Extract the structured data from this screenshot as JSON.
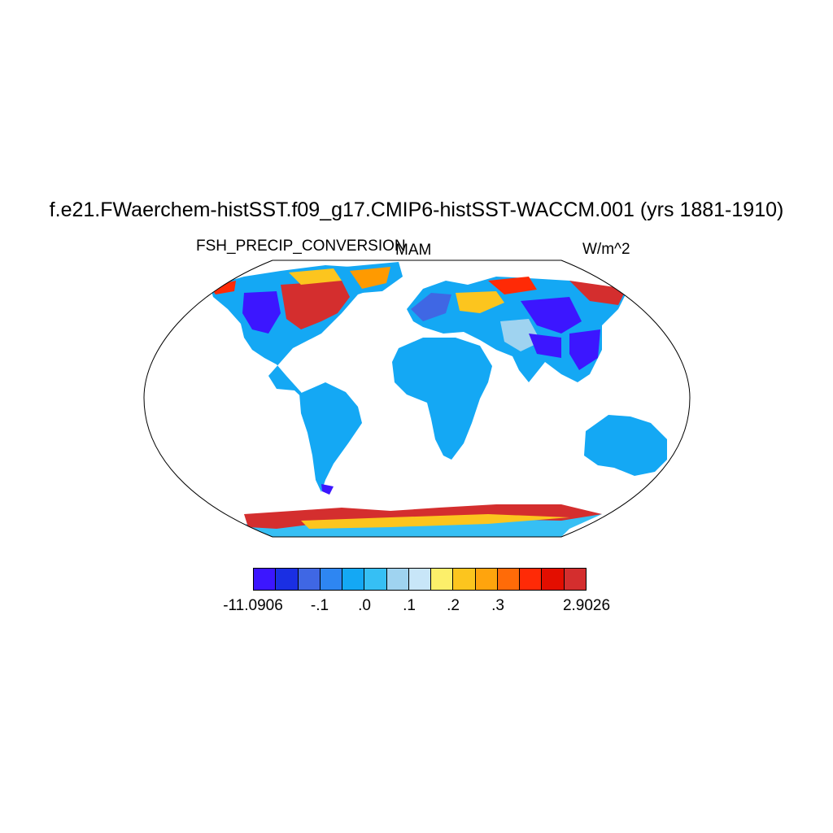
{
  "title": "f.e21.FWaerchem-histSST.f09_g17.CMIP6-histSST-WACCM.001 (yrs 1881-1910)",
  "variable": "FSH_PRECIP_CONVERSION",
  "season": "MAM",
  "units": "W/m^2",
  "colors": {
    "land_base": "#14a8f4",
    "ocean": "#ffffff",
    "deep_blue": "#3a1aff",
    "red": "#d32a2a",
    "orange": "#ff9a00",
    "yellow": "#fce85c",
    "light_blue": "#9fd3f0"
  },
  "colorbar": {
    "colors": [
      "#3c16ff",
      "#1a2fe3",
      "#3f67e4",
      "#2e86f2",
      "#14a8f4",
      "#36bff4",
      "#9fd3f0",
      "#c8e6f8",
      "#fcef6a",
      "#fcc51e",
      "#ffa40d",
      "#ff6b08",
      "#ff2a06",
      "#e30e00",
      "#d42e2e"
    ],
    "labels": [
      "-11.0906",
      "-.1",
      ".0",
      ".1",
      ".2",
      ".3",
      "2.9026"
    ]
  }
}
